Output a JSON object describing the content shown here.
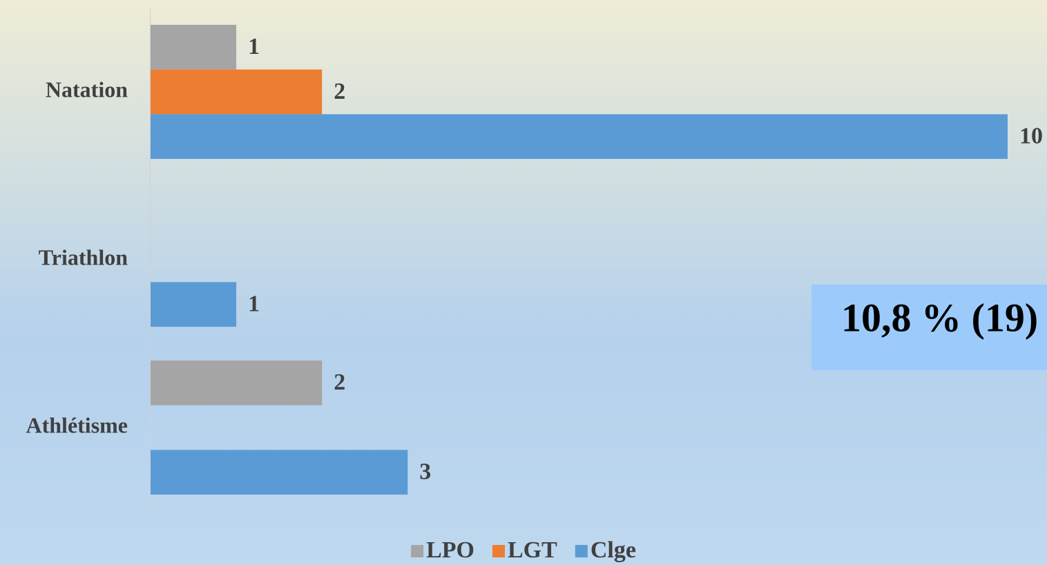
{
  "chart_data": {
    "type": "hbar",
    "categories": [
      "Natation",
      "Triathlon",
      "Athlétisme"
    ],
    "series": [
      {
        "name": "LPO",
        "color": "#a5a5a5",
        "values": [
          1,
          null,
          2
        ]
      },
      {
        "name": "LGT",
        "color": "#ed7d31",
        "values": [
          2,
          null,
          null
        ]
      },
      {
        "name": "Clge",
        "color": "#5b9bd5",
        "values": [
          10,
          1,
          3
        ]
      }
    ],
    "xlim": [
      0,
      10
    ],
    "annotation": "10,8 % (19)",
    "legend": "bottom"
  }
}
